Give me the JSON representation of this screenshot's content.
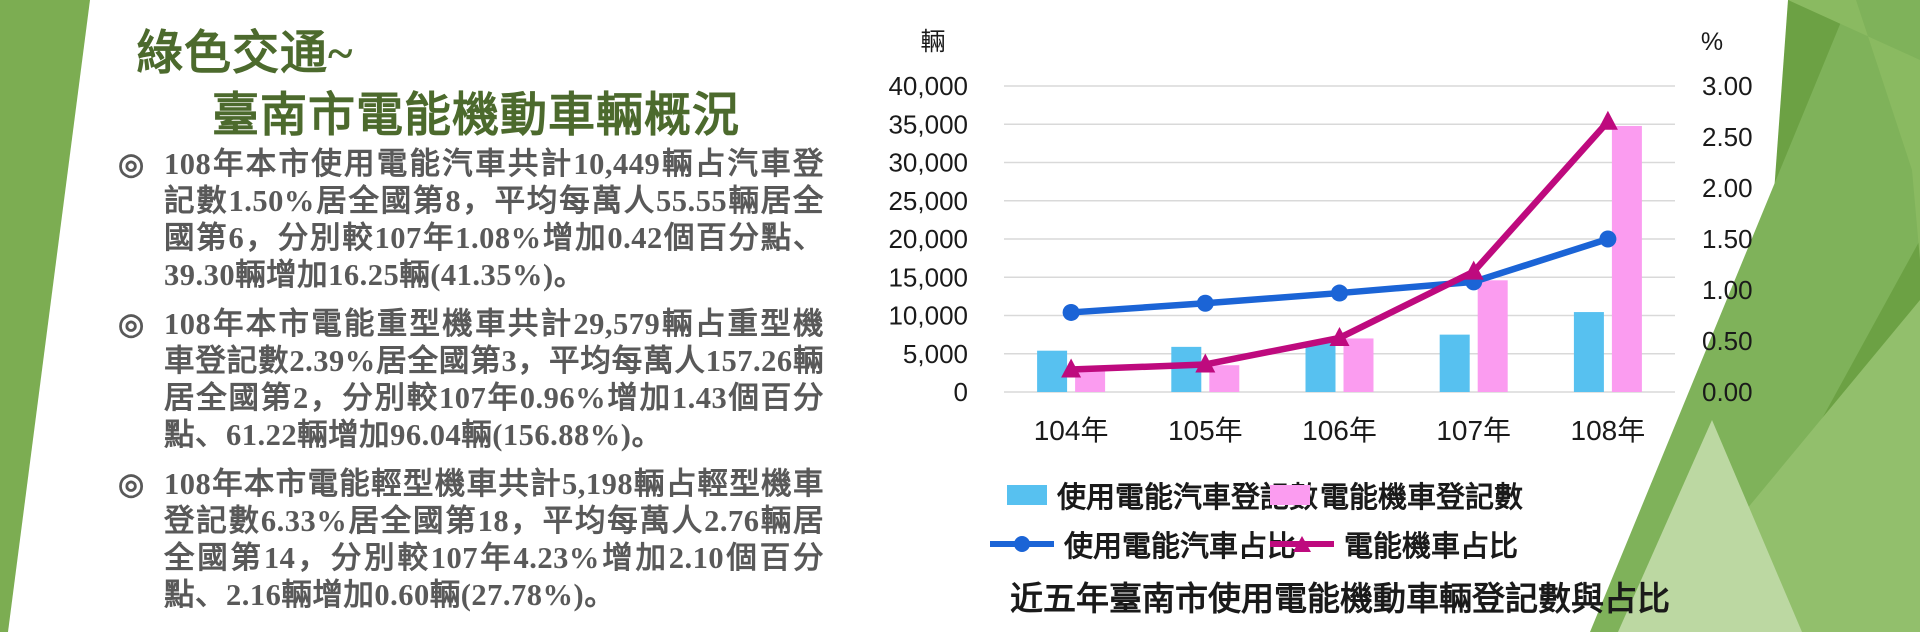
{
  "slide": {
    "title_line1": "綠色交通~",
    "title_line2": "臺南市電能機動車輛概況",
    "bullet_marker": "◎",
    "bullets": [
      {
        "text": "108年本市使用電能汽車共計10,449輛占汽車登記數1.50%居全國第8，平均每萬人55.55輛居全國第6，分別較107年1.08%增加0.42個百分點、39.30輛增加16.25輛(41.35%)。"
      },
      {
        "text": "108年本市電能重型機車共計29,579輛占重型機車登記數2.39%居全國第3，平均每萬人157.26輛居全國第2，分別較107年0.96%增加1.43個百分點、61.22輛增加96.04輛(156.88%)。"
      },
      {
        "text": "108年本市電能輕型機車共計5,198輛占輕型機車登記數6.33%居全國第18，平均每萬人2.76輛居全國第14，分別較107年4.23%增加2.10個百分點、2.16輛增加0.60輛(27.78%)。"
      }
    ]
  },
  "colors": {
    "title_green": "#4C6A2D",
    "body_text_gray": "#595959",
    "accent_green_left": "#7CAD52",
    "accent_green_right": "#6CA144",
    "gridline_gray": "#D9D9D9"
  },
  "chart_data": {
    "type": "combo-bar-line",
    "caption": "近五年臺南市使用電能機動車輛登記數與占比",
    "categories": [
      "104年",
      "105年",
      "106年",
      "107年",
      "108年"
    ],
    "series": [
      {
        "name": "使用電能汽車登記數",
        "type": "bar",
        "axis": "left",
        "color": "#57C1F0",
        "values": [
          5400,
          5900,
          6400,
          7500,
          10449
        ]
      },
      {
        "name": "電能機車登記數",
        "type": "bar",
        "axis": "left",
        "color": "#FB9CF0",
        "values": [
          2800,
          3500,
          7000,
          14600,
          34777
        ]
      },
      {
        "name": "使用電能汽車占比",
        "type": "line",
        "axis": "right",
        "marker": "circle",
        "color": "#1B64D6",
        "values": [
          0.78,
          0.87,
          0.97,
          1.08,
          1.5
        ]
      },
      {
        "name": "電能機車占比",
        "type": "line",
        "axis": "right",
        "marker": "triangle",
        "color": "#BE0A7E",
        "values": [
          0.22,
          0.27,
          0.53,
          1.18,
          2.65
        ]
      }
    ],
    "left_axis": {
      "unit": "輛",
      "min": 0,
      "max": 40000,
      "step": 5000,
      "tick_labels": [
        "40,000",
        "35,000",
        "30,000",
        "25,000",
        "20,000",
        "15,000",
        "10,000",
        "5,000",
        "0"
      ]
    },
    "right_axis": {
      "unit": "%",
      "min": 0,
      "max": 3.0,
      "step": 0.5,
      "tick_labels": [
        "3.00",
        "2.50",
        "2.00",
        "1.50",
        "1.00",
        "0.50",
        "0.00"
      ]
    },
    "grid": true,
    "legend_position": "bottom"
  }
}
